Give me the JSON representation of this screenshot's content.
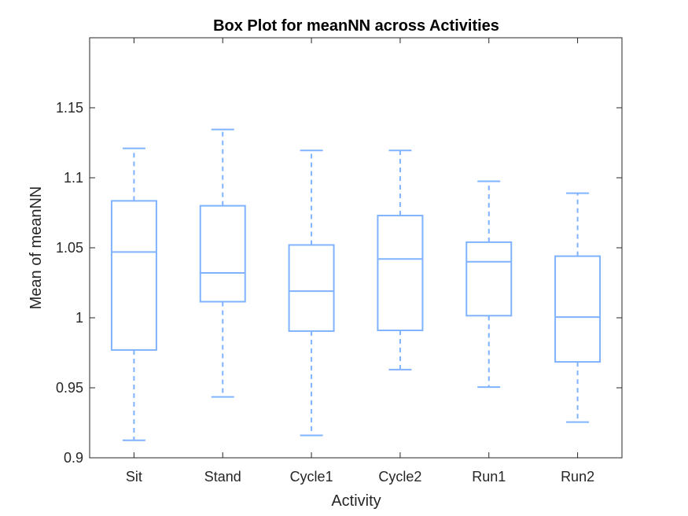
{
  "chart_data": {
    "type": "box",
    "title": "Box Plot for meanNN across Activities",
    "xlabel": "Activity",
    "ylabel": "Mean of meanNN",
    "ylim": [
      0.9,
      1.2
    ],
    "yticks": [
      0.9,
      0.95,
      1,
      1.05,
      1.1,
      1.15
    ],
    "ytick_labels": [
      "0.9",
      "0.95",
      "1",
      "1.05",
      "1.1",
      "1.15"
    ],
    "categories": [
      "Sit",
      "Stand",
      "Cycle1",
      "Cycle2",
      "Run1",
      "Run2"
    ],
    "boxes": [
      {
        "min": 0.9125,
        "q1": 0.977,
        "median": 1.047,
        "q3": 1.0835,
        "max": 1.121
      },
      {
        "min": 0.9435,
        "q1": 1.0115,
        "median": 1.032,
        "q3": 1.08,
        "max": 1.1345
      },
      {
        "min": 0.916,
        "q1": 0.9905,
        "median": 1.019,
        "q3": 1.052,
        "max": 1.1195
      },
      {
        "min": 0.963,
        "q1": 0.991,
        "median": 1.042,
        "q3": 1.073,
        "max": 1.1195
      },
      {
        "min": 0.9505,
        "q1": 1.0015,
        "median": 1.04,
        "q3": 1.054,
        "max": 1.0975
      },
      {
        "min": 0.9255,
        "q1": 0.9685,
        "median": 1.0005,
        "q3": 1.044,
        "max": 1.089
      }
    ],
    "color": "#80b3ff",
    "grid": false
  }
}
